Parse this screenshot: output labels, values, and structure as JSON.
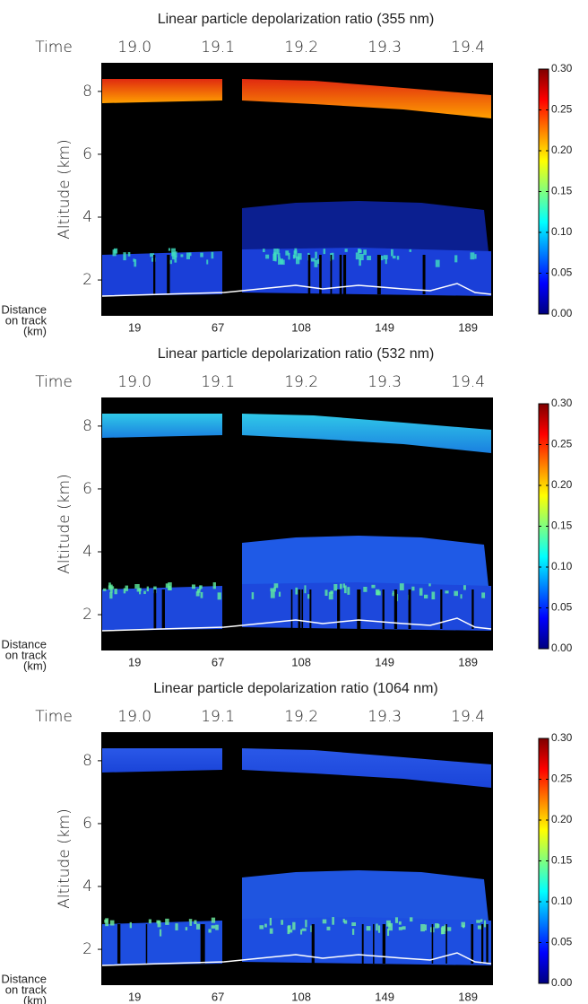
{
  "chart_data": [
    {
      "type": "curtain",
      "title": "Linear particle depolarization ratio (355 nm)",
      "ylabel": "Altitude (km)",
      "xlabel_top": "Time",
      "xlabel_bottom": [
        "Distance",
        "on track",
        "(km)"
      ],
      "xlim": [
        18.96,
        19.43
      ],
      "xticks": [
        {
          "value": 19,
          "label": "19.0"
        },
        19.1,
        19.2,
        19.3,
        19.4
      ],
      "distance_ticks": [
        19,
        67,
        108,
        149,
        189
      ],
      "ylim": [
        0.86,
        8.91
      ],
      "yticks": [
        2,
        4,
        6,
        8
      ],
      "clim": [
        0,
        0.3
      ],
      "cticks": [
        {
          "value": 0,
          "label": "0.00"
        },
        0.05,
        {
          "value": 0.1,
          "label": "0.10"
        },
        0.15,
        {
          "value": 0.2,
          "label": "0.20"
        },
        0.25,
        {
          "value": 0.3,
          "label": "0.30"
        }
      ]
    },
    {
      "type": "curtain",
      "title": "Linear particle depolarization ratio (532 nm)",
      "ylabel": "Altitude (km)",
      "xlabel_top": "Time",
      "xlabel_bottom": [
        "Distance",
        "on track",
        "(km)"
      ],
      "xlim": [
        18.96,
        19.43
      ],
      "xticks": [
        {
          "value": 19,
          "label": "19.0"
        },
        19.1,
        19.2,
        19.3,
        19.4
      ],
      "distance_ticks": [
        19,
        67,
        108,
        149,
        189
      ],
      "ylim": [
        0.86,
        8.91
      ],
      "yticks": [
        2,
        4,
        6,
        8
      ],
      "clim": [
        0,
        0.3
      ],
      "cticks": [
        {
          "value": 0,
          "label": "0.00"
        },
        0.05,
        {
          "value": 0.1,
          "label": "0.10"
        },
        0.15,
        {
          "value": 0.2,
          "label": "0.20"
        },
        0.25,
        {
          "value": 0.3,
          "label": "0.30"
        }
      ]
    },
    {
      "type": "curtain",
      "title": "Linear particle depolarization ratio (1064 nm)",
      "ylabel": "Altitude (km)",
      "xlabel_top": "Time",
      "xlabel_bottom": [
        "Distance",
        "on track",
        "(km)"
      ],
      "xlim": [
        18.96,
        19.43
      ],
      "xticks": [
        {
          "value": 19,
          "label": "19.0"
        },
        19.1,
        19.2,
        19.3,
        19.4
      ],
      "distance_ticks": [
        19,
        67,
        108,
        149,
        189
      ],
      "ylim": [
        0.86,
        8.91
      ],
      "yticks": [
        2,
        4,
        6,
        8
      ],
      "clim": [
        0,
        0.3
      ],
      "cticks": [
        {
          "value": 0,
          "label": "0.00"
        },
        0.05,
        {
          "value": 0.1,
          "label": "0.10"
        },
        0.15,
        {
          "value": 0.2,
          "label": "0.20"
        },
        0.25,
        {
          "value": 0.3,
          "label": "0.30"
        }
      ]
    }
  ]
}
